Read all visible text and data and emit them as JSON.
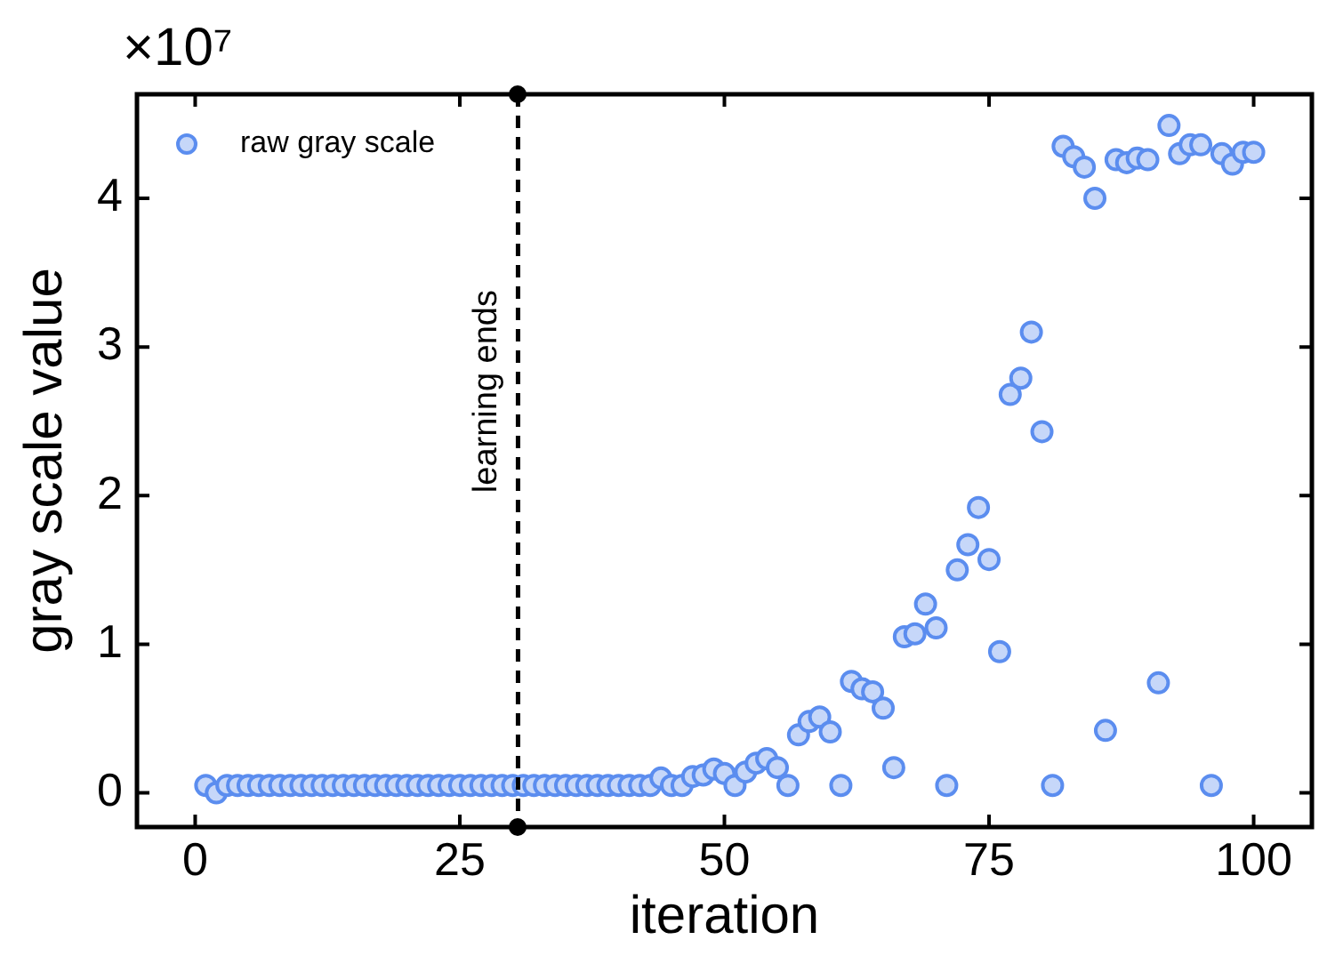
{
  "chart_data": {
    "type": "scatter",
    "xlabel": "iteration",
    "ylabel": "gray scale value",
    "x": [
      1,
      2,
      3,
      4,
      5,
      6,
      7,
      8,
      9,
      10,
      11,
      12,
      13,
      14,
      15,
      16,
      17,
      18,
      19,
      20,
      21,
      22,
      23,
      24,
      25,
      26,
      27,
      28,
      29,
      30,
      31,
      32,
      33,
      34,
      35,
      36,
      37,
      38,
      39,
      40,
      41,
      42,
      43,
      44,
      45,
      46,
      47,
      48,
      49,
      50,
      51,
      52,
      53,
      54,
      55,
      56,
      57,
      58,
      59,
      60,
      61,
      62,
      63,
      64,
      65,
      66,
      67,
      68,
      69,
      70,
      71,
      72,
      73,
      74,
      75,
      76,
      77,
      78,
      79,
      80,
      81,
      82,
      83,
      84,
      85,
      86,
      87,
      88,
      89,
      90,
      91,
      92,
      93,
      94,
      95,
      96,
      97,
      98,
      99,
      100
    ],
    "series": [
      {
        "name": "raw gray scale",
        "color": "#5b8def",
        "values": [
          0.05,
          0.0,
          0.05,
          0.05,
          0.05,
          0.05,
          0.05,
          0.05,
          0.05,
          0.05,
          0.05,
          0.05,
          0.05,
          0.05,
          0.05,
          0.05,
          0.05,
          0.05,
          0.05,
          0.05,
          0.05,
          0.05,
          0.05,
          0.05,
          0.05,
          0.05,
          0.05,
          0.05,
          0.05,
          0.05,
          0.05,
          0.05,
          0.05,
          0.05,
          0.05,
          0.05,
          0.05,
          0.05,
          0.05,
          0.05,
          0.05,
          0.05,
          0.05,
          0.1,
          0.05,
          0.05,
          0.11,
          0.12,
          0.16,
          0.13,
          0.05,
          0.14,
          0.2,
          0.23,
          0.17,
          0.05,
          0.39,
          0.48,
          0.51,
          0.41,
          0.05,
          0.75,
          0.7,
          0.68,
          0.57,
          0.17,
          1.05,
          1.07,
          1.27,
          1.11,
          0.05,
          1.5,
          1.67,
          1.92,
          1.57,
          0.95,
          2.68,
          2.79,
          3.1,
          2.43,
          0.05,
          4.35,
          4.28,
          4.21,
          4.0,
          0.42,
          4.26,
          4.24,
          4.27,
          4.26,
          0.74,
          4.49,
          4.3,
          4.36,
          4.36,
          0.05,
          4.3,
          4.23,
          4.31,
          4.31
        ]
      }
    ],
    "xlim": [
      -5.5,
      105.5
    ],
    "xticks": [
      0,
      25,
      50,
      75,
      100
    ],
    "ylim": [
      -0.23,
      4.7
    ],
    "yticks": [
      0,
      1,
      2,
      3,
      4
    ],
    "ref_lines": [
      {
        "axis": "x",
        "value": 30.5,
        "label": "learning ends",
        "color": "#000000",
        "line_style": "dashed"
      }
    ],
    "annotations": [
      "×10⁷"
    ],
    "legend": "top left",
    "marker": "circle",
    "grid": false
  }
}
